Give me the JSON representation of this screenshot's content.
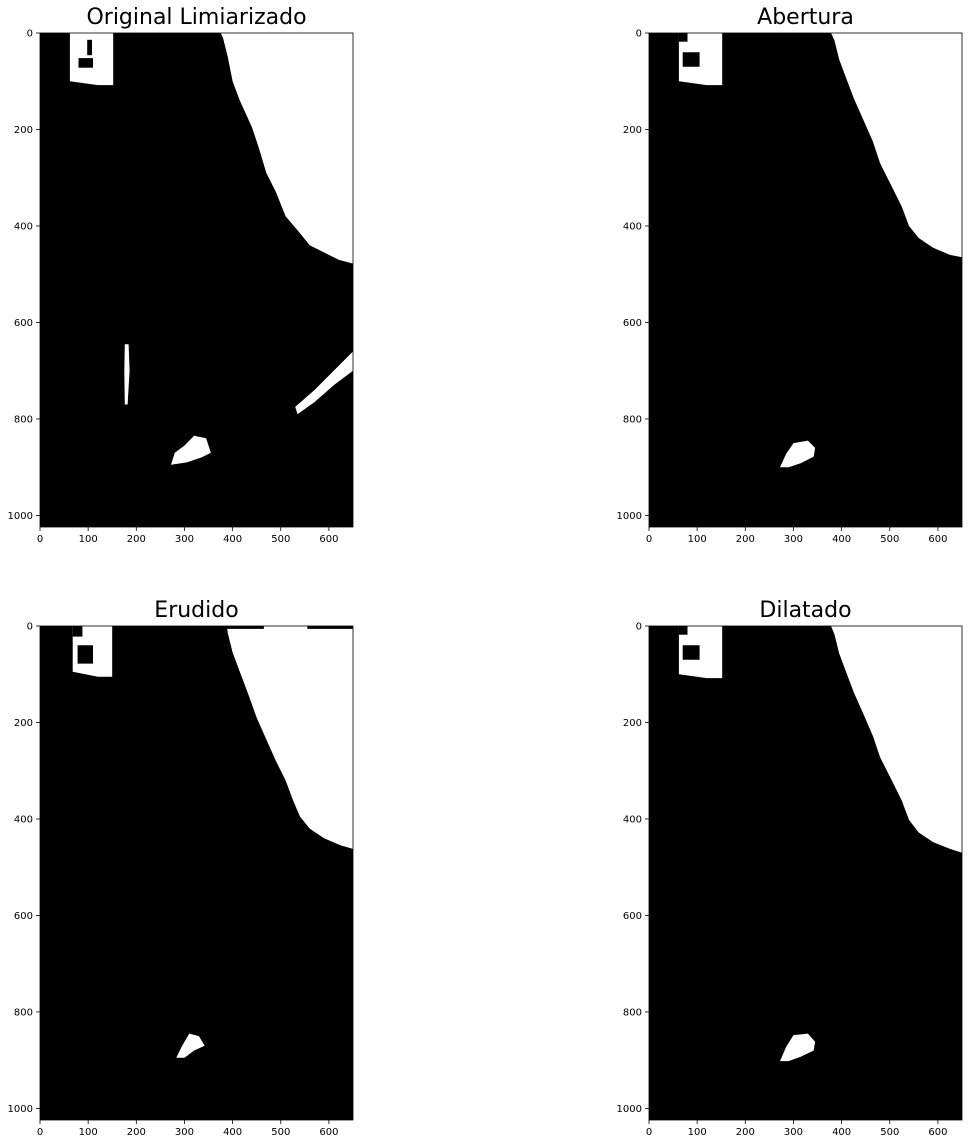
{
  "figure": {
    "background": "#ffffff",
    "foreground": "#000000"
  },
  "chart_data": [
    {
      "type": "image",
      "title": "Original Limiarizado",
      "xlim": [
        0,
        650
      ],
      "ylim": [
        1024,
        0
      ],
      "xticks": [
        0,
        100,
        200,
        300,
        400,
        500,
        600
      ],
      "yticks": [
        0,
        200,
        400,
        600,
        800,
        1000
      ],
      "white_regions": [
        {
          "name": "sign",
          "points": [
            [
              62,
              0
            ],
            [
              152,
              0
            ],
            [
              152,
              108
            ],
            [
              120,
              108
            ],
            [
              62,
              100
            ]
          ]
        },
        {
          "name": "upper-right-white",
          "points": [
            [
              375,
              0
            ],
            [
              650,
              0
            ],
            [
              650,
              478
            ],
            [
              620,
              470
            ],
            [
              590,
              455
            ],
            [
              560,
              440
            ],
            [
              540,
              415
            ],
            [
              510,
              380
            ],
            [
              490,
              330
            ],
            [
              470,
              290
            ],
            [
              455,
              240
            ],
            [
              440,
              195
            ],
            [
              415,
              140
            ],
            [
              400,
              100
            ],
            [
              390,
              50
            ],
            [
              380,
              10
            ]
          ]
        },
        {
          "name": "blob",
          "points": [
            [
              272,
              895
            ],
            [
              280,
              870
            ],
            [
              300,
              855
            ],
            [
              320,
              835
            ],
            [
              345,
              840
            ],
            [
              355,
              870
            ],
            [
              335,
              880
            ],
            [
              305,
              890
            ]
          ]
        },
        {
          "name": "vertical-streak",
          "points": [
            [
              176,
              645
            ],
            [
              184,
              645
            ],
            [
              186,
              700
            ],
            [
              182,
              770
            ],
            [
              176,
              770
            ],
            [
              175,
              700
            ]
          ]
        },
        {
          "name": "right-streak",
          "points": [
            [
              530,
              775
            ],
            [
              570,
              740
            ],
            [
              610,
              700
            ],
            [
              640,
              670
            ],
            [
              650,
              660
            ],
            [
              650,
              700
            ],
            [
              610,
              730
            ],
            [
              570,
              765
            ],
            [
              535,
              790
            ]
          ]
        }
      ],
      "black_marks": [
        {
          "name": "sign-letter-j",
          "points": [
            [
              98,
              14
            ],
            [
              108,
              14
            ],
            [
              108,
              46
            ],
            [
              98,
              46
            ]
          ]
        },
        {
          "name": "sign-letter-lm",
          "points": [
            [
              80,
              52
            ],
            [
              110,
              52
            ],
            [
              110,
              72
            ],
            [
              80,
              72
            ]
          ]
        }
      ]
    },
    {
      "type": "image",
      "title": "Abertura",
      "xlim": [
        0,
        650
      ],
      "ylim": [
        1024,
        0
      ],
      "xticks": [
        0,
        100,
        200,
        300,
        400,
        500,
        600
      ],
      "yticks": [
        0,
        200,
        400,
        600,
        800,
        1000
      ],
      "white_regions": [
        {
          "name": "sign",
          "points": [
            [
              62,
              0
            ],
            [
              152,
              0
            ],
            [
              152,
              108
            ],
            [
              120,
              108
            ],
            [
              62,
              100
            ]
          ]
        },
        {
          "name": "upper-right-white",
          "points": [
            [
              378,
              0
            ],
            [
              650,
              0
            ],
            [
              650,
              465
            ],
            [
              625,
              460
            ],
            [
              590,
              445
            ],
            [
              560,
              425
            ],
            [
              540,
              400
            ],
            [
              525,
              360
            ],
            [
              505,
              320
            ],
            [
              480,
              270
            ],
            [
              465,
              225
            ],
            [
              445,
              180
            ],
            [
              425,
              135
            ],
            [
              410,
              95
            ],
            [
              395,
              55
            ],
            [
              385,
              15
            ]
          ]
        },
        {
          "name": "blob",
          "points": [
            [
              272,
              900
            ],
            [
              285,
              872
            ],
            [
              300,
              850
            ],
            [
              330,
              845
            ],
            [
              345,
              860
            ],
            [
              342,
              878
            ],
            [
              315,
              892
            ],
            [
              290,
              900
            ]
          ]
        }
      ],
      "black_marks": [
        {
          "name": "sign-notch-top",
          "points": [
            [
              62,
              0
            ],
            [
              80,
              0
            ],
            [
              80,
              18
            ],
            [
              62,
              18
            ]
          ]
        },
        {
          "name": "sign-notch-block",
          "points": [
            [
              70,
              40
            ],
            [
              105,
              40
            ],
            [
              105,
              70
            ],
            [
              70,
              70
            ]
          ]
        }
      ]
    },
    {
      "type": "image",
      "title": "Erudido",
      "xlim": [
        0,
        650
      ],
      "ylim": [
        1024,
        0
      ],
      "xticks": [
        0,
        100,
        200,
        300,
        400,
        500,
        600
      ],
      "yticks": [
        0,
        200,
        400,
        600,
        800,
        1000
      ],
      "white_regions": [
        {
          "name": "sign",
          "points": [
            [
              68,
              0
            ],
            [
              150,
              0
            ],
            [
              150,
              105
            ],
            [
              120,
              105
            ],
            [
              68,
              95
            ]
          ]
        },
        {
          "name": "upper-right-white",
          "points": [
            [
              388,
              0
            ],
            [
              650,
              0
            ],
            [
              650,
              462
            ],
            [
              625,
              455
            ],
            [
              590,
              440
            ],
            [
              560,
              420
            ],
            [
              540,
              395
            ],
            [
              525,
              360
            ],
            [
              510,
              320
            ],
            [
              490,
              280
            ],
            [
              470,
              235
            ],
            [
              450,
              190
            ],
            [
              432,
              140
            ],
            [
              415,
              95
            ],
            [
              400,
              55
            ],
            [
              390,
              15
            ]
          ]
        },
        {
          "name": "blob",
          "points": [
            [
              283,
              895
            ],
            [
              295,
              870
            ],
            [
              310,
              845
            ],
            [
              330,
              850
            ],
            [
              342,
              870
            ],
            [
              320,
              880
            ],
            [
              300,
              895
            ]
          ]
        }
      ],
      "black_marks": [
        {
          "name": "sign-notch-top",
          "points": [
            [
              68,
              0
            ],
            [
              88,
              0
            ],
            [
              88,
              22
            ],
            [
              68,
              22
            ]
          ]
        },
        {
          "name": "sign-notch-block",
          "points": [
            [
              78,
              40
            ],
            [
              110,
              40
            ],
            [
              110,
              78
            ],
            [
              78,
              78
            ]
          ]
        },
        {
          "name": "top-black-bar-left",
          "points": [
            [
              388,
              0
            ],
            [
              465,
              0
            ],
            [
              465,
              6
            ],
            [
              388,
              6
            ]
          ]
        },
        {
          "name": "top-black-bar-right",
          "points": [
            [
              555,
              0
            ],
            [
              650,
              0
            ],
            [
              650,
              6
            ],
            [
              555,
              6
            ]
          ]
        }
      ]
    },
    {
      "type": "image",
      "title": "Dilatado",
      "xlim": [
        0,
        650
      ],
      "ylim": [
        1024,
        0
      ],
      "xticks": [
        0,
        100,
        200,
        300,
        400,
        500,
        600
      ],
      "yticks": [
        0,
        200,
        400,
        600,
        800,
        1000
      ],
      "white_regions": [
        {
          "name": "sign",
          "points": [
            [
              62,
              0
            ],
            [
              152,
              0
            ],
            [
              152,
              108
            ],
            [
              120,
              108
            ],
            [
              62,
              100
            ]
          ]
        },
        {
          "name": "upper-right-white",
          "points": [
            [
              378,
              0
            ],
            [
              650,
              0
            ],
            [
              650,
              470
            ],
            [
              625,
              462
            ],
            [
              590,
              448
            ],
            [
              560,
              428
            ],
            [
              540,
              402
            ],
            [
              525,
              362
            ],
            [
              505,
              322
            ],
            [
              480,
              272
            ],
            [
              465,
              228
            ],
            [
              445,
              182
            ],
            [
              425,
              137
            ],
            [
              410,
              97
            ],
            [
              395,
              57
            ],
            [
              385,
              17
            ]
          ]
        },
        {
          "name": "blob",
          "points": [
            [
              272,
              902
            ],
            [
              285,
              872
            ],
            [
              300,
              848
            ],
            [
              330,
              845
            ],
            [
              345,
              862
            ],
            [
              342,
              880
            ],
            [
              315,
              893
            ],
            [
              290,
              902
            ]
          ]
        }
      ],
      "black_marks": [
        {
          "name": "sign-notch-top",
          "points": [
            [
              62,
              0
            ],
            [
              80,
              0
            ],
            [
              80,
              18
            ],
            [
              62,
              18
            ]
          ]
        },
        {
          "name": "sign-notch-block",
          "points": [
            [
              70,
              40
            ],
            [
              105,
              40
            ],
            [
              105,
              70
            ],
            [
              70,
              70
            ]
          ]
        }
      ]
    }
  ]
}
